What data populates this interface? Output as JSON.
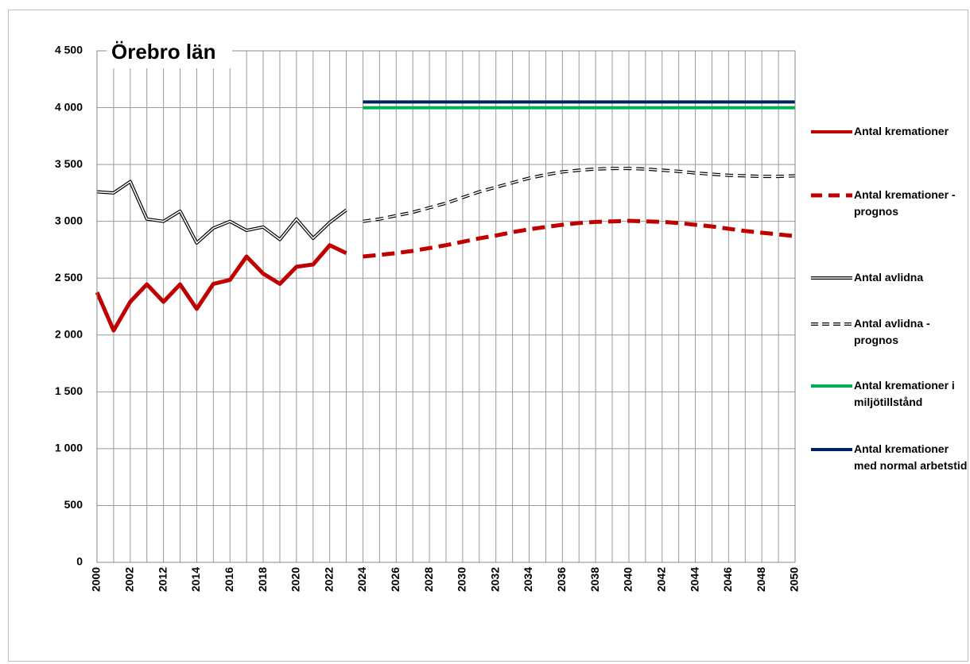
{
  "chart_data": {
    "type": "line",
    "title": "Örebro län",
    "categories": [
      "2000",
      null,
      "2002",
      null,
      "2012",
      null,
      "2014",
      null,
      "2016",
      null,
      "2018",
      null,
      "2020",
      null,
      "2022",
      null,
      "2024",
      null,
      "2026",
      null,
      "2028",
      null,
      "2030",
      null,
      "2032",
      null,
      "2034",
      null,
      "2036",
      null,
      "2038",
      null,
      "2040",
      null,
      "2042",
      null,
      "2044",
      null,
      "2046",
      null,
      "2048",
      null,
      "2050"
    ],
    "ylim": [
      0,
      4500
    ],
    "yticks": [
      0,
      500,
      {
        "value": 1000,
        "label": "1 000"
      },
      {
        "value": 1500,
        "label": "1 500"
      },
      {
        "value": 2000,
        "label": "2 000"
      },
      {
        "value": 2500,
        "label": "2 500"
      },
      {
        "value": 3000,
        "label": "3 000"
      },
      {
        "value": 3500,
        "label": "3 500"
      },
      {
        "value": 4000,
        "label": "4 000"
      },
      {
        "value": 4500,
        "label": "4 500"
      }
    ],
    "grid": true,
    "legend": "right",
    "series": [
      {
        "name": "Antal kremationer",
        "color": "#c00000",
        "style": "solid",
        "values": [
          2376,
          2040,
          2292,
          2446,
          2292,
          2446,
          2230,
          2450,
          2485,
          2690,
          2540,
          2450,
          2600,
          2620,
          2790,
          2720,
          null,
          null,
          null,
          null,
          null,
          null,
          null,
          null,
          null,
          null,
          null,
          null,
          null,
          null,
          null,
          null,
          null,
          null,
          null,
          null,
          null,
          null,
          null,
          null,
          null,
          null,
          null
        ]
      },
      {
        "name": "Antal kremationer - prognos",
        "color": "#c00000",
        "style": "dashed",
        "values": [
          null,
          null,
          null,
          null,
          null,
          null,
          null,
          null,
          null,
          null,
          null,
          null,
          null,
          null,
          null,
          null,
          2690,
          2705,
          2720,
          2740,
          2765,
          2790,
          2820,
          2850,
          2875,
          2905,
          2930,
          2950,
          2970,
          2985,
          2995,
          3000,
          3005,
          3000,
          2995,
          2985,
          2970,
          2955,
          2935,
          2915,
          2900,
          2885,
          2870
        ]
      },
      {
        "name": "Antal avlidna",
        "color": "#000000",
        "style": "double",
        "values": [
          3260,
          3250,
          3350,
          3020,
          3000,
          3090,
          2810,
          2940,
          3000,
          2920,
          2950,
          2840,
          3020,
          2850,
          2990,
          3100,
          null,
          null,
          null,
          null,
          null,
          null,
          null,
          null,
          null,
          null,
          null,
          null,
          null,
          null,
          null,
          null,
          null,
          null,
          null,
          null,
          null,
          null,
          null,
          null,
          null,
          null,
          null
        ]
      },
      {
        "name": "Antal avlidna - prognos",
        "color": "#000000",
        "style": "double-dashed",
        "values": [
          null,
          null,
          null,
          null,
          null,
          null,
          null,
          null,
          null,
          null,
          null,
          null,
          null,
          null,
          null,
          null,
          3000,
          3020,
          3050,
          3080,
          3120,
          3160,
          3210,
          3260,
          3300,
          3340,
          3380,
          3410,
          3435,
          3450,
          3460,
          3465,
          3465,
          3460,
          3450,
          3440,
          3425,
          3415,
          3405,
          3400,
          3395,
          3395,
          3400
        ]
      },
      {
        "name": "Antal kremationer i miljötillstånd",
        "color": "#00b050",
        "style": "solid",
        "values": [
          null,
          null,
          null,
          null,
          null,
          null,
          null,
          null,
          null,
          null,
          null,
          null,
          null,
          null,
          null,
          null,
          4000,
          4000,
          4000,
          4000,
          4000,
          4000,
          4000,
          4000,
          4000,
          4000,
          4000,
          4000,
          4000,
          4000,
          4000,
          4000,
          4000,
          4000,
          4000,
          4000,
          4000,
          4000,
          4000,
          4000,
          4000,
          4000,
          4000
        ]
      },
      {
        "name": "Antal kremationer med normal arbetstid",
        "color": "#002060",
        "style": "solid",
        "values": [
          null,
          null,
          null,
          null,
          null,
          null,
          null,
          null,
          null,
          null,
          null,
          null,
          null,
          null,
          null,
          null,
          4050,
          4050,
          4050,
          4050,
          4050,
          4050,
          4050,
          4050,
          4050,
          4050,
          4050,
          4050,
          4050,
          4050,
          4050,
          4050,
          4050,
          4050,
          4050,
          4050,
          4050,
          4050,
          4050,
          4050,
          4050,
          4050,
          4050
        ]
      }
    ]
  }
}
